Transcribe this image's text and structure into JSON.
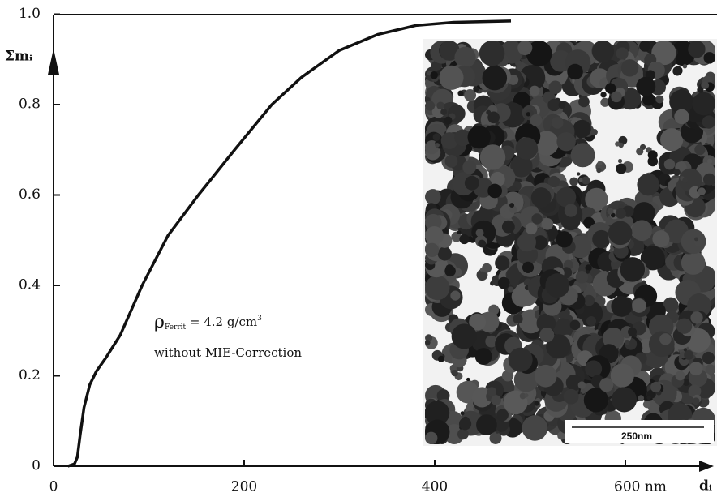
{
  "chart_data": {
    "type": "line",
    "ylabel": "Σmᵢ",
    "xlabel": "dᵢ",
    "annotation_symbol": "ρ",
    "annotation_subscript": "Ferrit",
    "annotation_text": " = 4.2 g/cm",
    "annotation_superscript": "3",
    "annotation_line2": "without MIE-Correction",
    "inset_scale_label": "250nm",
    "x": [
      15,
      22,
      25,
      28,
      32,
      38,
      45,
      55,
      70,
      93,
      120,
      152,
      190,
      229,
      260,
      300,
      340,
      380,
      420,
      480
    ],
    "series": [
      {
        "color": "#111111",
        "values": [
          0,
          0.005,
          0.02,
          0.07,
          0.13,
          0.18,
          0.21,
          0.24,
          0.29,
          0.4,
          0.51,
          0.6,
          0.7,
          0.8,
          0.86,
          0.92,
          0.955,
          0.975,
          0.982,
          0.985
        ]
      }
    ],
    "xlim": [
      0,
      684
    ],
    "ylim": [
      0,
      1
    ],
    "xticks": [
      0,
      200,
      400,
      {
        "value": 600,
        "label": "600 nm"
      }
    ],
    "yticks": [
      0,
      0.2,
      0.4,
      0.6,
      0.8,
      {
        "value": 1,
        "label": "1.0"
      }
    ]
  }
}
